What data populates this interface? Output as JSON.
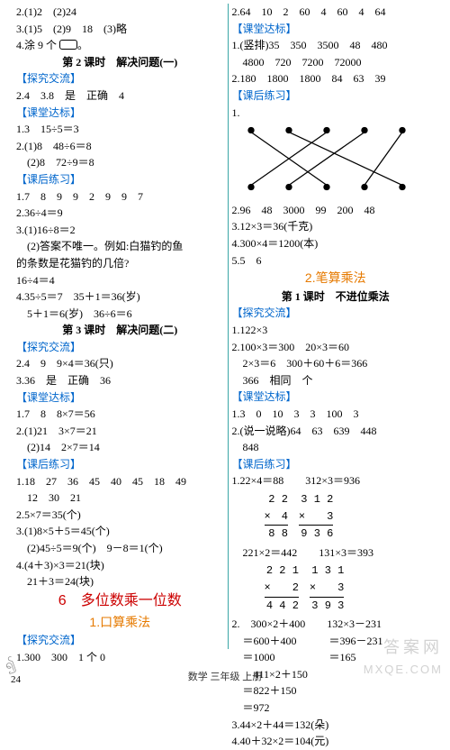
{
  "left": {
    "lines": [
      {
        "t": "2.(1)2　(2)24"
      },
      {
        "t": "3.(1)5　(2)9　18　(3)略"
      },
      {
        "t": "4.涂 9 个",
        "box": true,
        "suffix": "。"
      },
      {
        "t": "第 2 课时　解决问题(一)",
        "cls": "bold ctr"
      },
      {
        "t": "【探究交流】",
        "cls": "blue"
      },
      {
        "t": "2.4　3.8　是　正确　4"
      },
      {
        "t": "【课堂达标】",
        "cls": "blue"
      },
      {
        "t": "1.3　15÷5＝3"
      },
      {
        "t": "2.(1)8　48÷6＝8"
      },
      {
        "t": "　(2)8　72÷9＝8"
      },
      {
        "t": "【课后练习】",
        "cls": "blue"
      },
      {
        "t": "1.7　8　9　9　2　9　9　7"
      },
      {
        "t": "2.36÷4＝9"
      },
      {
        "t": "3.(1)16÷8＝2"
      },
      {
        "t": "　(2)答案不唯一。例如:白猫钓的鱼"
      },
      {
        "t": "的条数是花猫钓的几倍?"
      },
      {
        "t": "16÷4＝4"
      },
      {
        "t": "4.35÷5＝7　35＋1＝36(岁)"
      },
      {
        "t": "　5＋1＝6(岁)　36÷6＝6"
      },
      {
        "t": "第 3 课时　解决问题(二)",
        "cls": "bold ctr"
      },
      {
        "t": "【探究交流】",
        "cls": "blue"
      },
      {
        "t": "2.4　9　9×4＝36(只)"
      },
      {
        "t": "3.36　是　正确　36"
      },
      {
        "t": "【课堂达标】",
        "cls": "blue"
      },
      {
        "t": "1.7　8　8×7＝56"
      },
      {
        "t": "2.(1)21　3×7＝21"
      },
      {
        "t": "　(2)14　2×7＝14"
      },
      {
        "t": "【课后练习】",
        "cls": "blue"
      },
      {
        "t": "1.18　27　36　45　40　45　18　49"
      },
      {
        "t": "　12　30　21"
      },
      {
        "t": "2.5×7＝35(个)"
      },
      {
        "t": "3.(1)8×5＋5＝45(个)"
      },
      {
        "t": "　(2)45÷5＝9(个)　9－8＝1(个)"
      },
      {
        "t": "4.(4＋3)×3＝21(块)"
      },
      {
        "t": "　21＋3＝24(块)"
      },
      {
        "t": "6　多位数乘一位数",
        "cls": "red ctr",
        "size": 16
      },
      {
        "t": "1.口算乘法",
        "cls": "orange ctr",
        "size": 14
      },
      {
        "t": "【探究交流】",
        "cls": "blue"
      },
      {
        "t": "1.300　300　1 个 0"
      }
    ]
  },
  "right": {
    "lines_top": [
      {
        "t": "2.64　10　2　60　4　60　4　64"
      },
      {
        "t": "【课堂达标】",
        "cls": "blue"
      },
      {
        "t": "1.(竖排)35　350　3500　48　480"
      },
      {
        "t": "　4800　720　7200　72000"
      },
      {
        "t": "2.180　1800　1800　84　63　39"
      },
      {
        "t": "【课后练习】",
        "cls": "blue"
      },
      {
        "t": "1."
      }
    ],
    "match": {
      "topX": [
        20,
        60,
        100,
        140,
        180
      ],
      "botX": [
        20,
        60,
        100,
        140,
        180
      ],
      "edges": [
        [
          0,
          2
        ],
        [
          1,
          4
        ],
        [
          2,
          0
        ],
        [
          3,
          1
        ],
        [
          4,
          3
        ]
      ],
      "stroke": "#000000"
    },
    "lines_mid": [
      {
        "t": "2.96　48　3000　99　200　48"
      },
      {
        "t": "3.12×3＝36(千克)"
      },
      {
        "t": "4.300×4＝1200(本)"
      },
      {
        "t": "5.5　6"
      },
      {
        "t": "2.笔算乘法",
        "cls": "orange ctr",
        "size": 14
      },
      {
        "t": "第 1 课时　不进位乘法",
        "cls": "bold ctr"
      },
      {
        "t": "【探究交流】",
        "cls": "blue"
      },
      {
        "t": "1.122×3"
      },
      {
        "t": "2.100×3＝300　20×3＝60"
      },
      {
        "t": "　2×3＝6　300＋60＋6＝366"
      },
      {
        "t": "　366　相同　个"
      },
      {
        "t": "【课堂达标】",
        "cls": "blue"
      },
      {
        "t": "1.3　0　10　3　3　100　3"
      },
      {
        "t": "2.(说一说略)64　63　639　448"
      },
      {
        "t": "　848"
      },
      {
        "t": "【课后练习】",
        "cls": "blue"
      }
    ],
    "mult_rows": [
      {
        "lead": "1.22×4＝88",
        "right_lead": "312×3＝936",
        "left": {
          "a": "2 2",
          "b": "×　4",
          "r": "8 8"
        },
        "right": {
          "a": "3 1 2",
          "b": "×　　3",
          "r": "9 3 6"
        }
      },
      {
        "lead": "　221×2＝442",
        "right_lead": "131×3＝393",
        "left": {
          "a": "2 2 1",
          "b": "×　　2",
          "r": "4 4 2"
        },
        "right": {
          "a": "1 3 1",
          "b": "×　　3",
          "r": "3 9 3"
        }
      }
    ],
    "lines_bot": [
      {
        "t": "2.　300×2＋400　　132×3－231"
      },
      {
        "t": "　＝600＋400　　　＝396－231"
      },
      {
        "t": "　＝1000　　　　　＝165"
      },
      {
        "t": "　　411×2＋150"
      },
      {
        "t": "　＝822＋150"
      },
      {
        "t": "　＝972"
      },
      {
        "t": "3.44×2＋44＝132(朵)"
      },
      {
        "t": "4.40＋32×2＝104(元)"
      }
    ]
  },
  "footer": "数学 三年级 上册",
  "pagenum": "24",
  "watermark1": "答案网",
  "watermark2": "MXQE.COM"
}
